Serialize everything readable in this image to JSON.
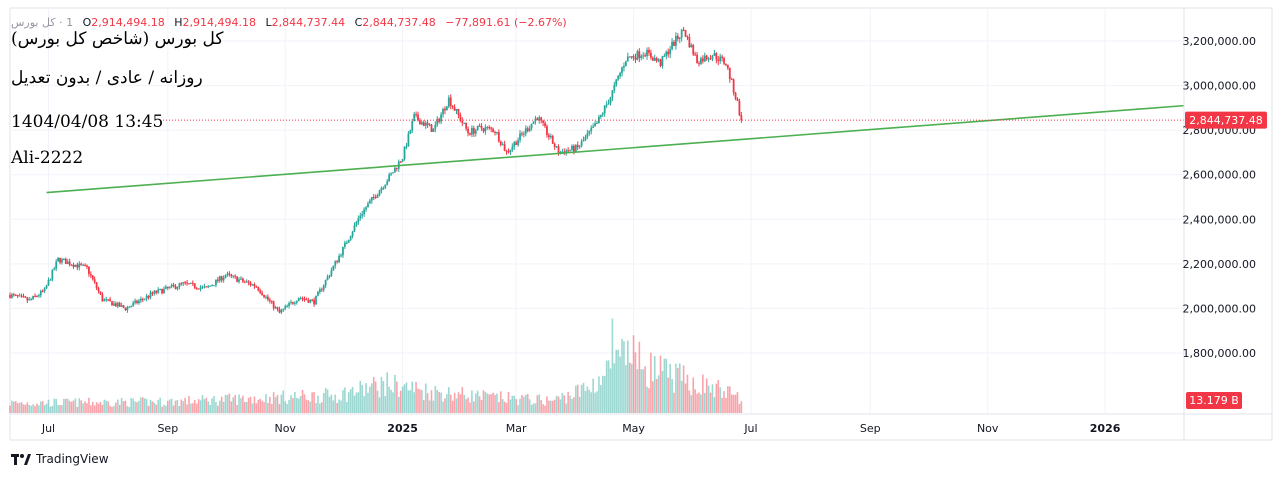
{
  "legend": {
    "symbol_name": "کل بورس",
    "timeframe": "1",
    "o_label": "O",
    "o_value": "2,914,494.18",
    "h_label": "H",
    "h_value": "2,914,494.18",
    "l_label": "L",
    "l_value": "2,844,737.44",
    "c_label": "C",
    "c_value": "2,844,737.48",
    "change": "−77,891.61 (−2.67%)"
  },
  "overlay": {
    "title": "کل بورس (شاخص کل بورس)",
    "subtitle": "روزانه / عادی / بدون تعدیل",
    "datetime": "1404/04/08 13:45",
    "author": "Ali-2222"
  },
  "brand": {
    "name": "TradingView"
  },
  "colors": {
    "up": "#26a69a",
    "down": "#f23645",
    "trendline": "#4caf50",
    "grid": "#f0f3fa",
    "text": "#131722"
  },
  "chart_data": {
    "type": "candlestick",
    "title": "کل بورس (شاخص کل بورس)",
    "interval": "daily",
    "ylim": [
      1600000,
      3300000
    ],
    "y_ticks": [
      1800000,
      2000000,
      2200000,
      2400000,
      2600000,
      2800000,
      3000000,
      3200000
    ],
    "y_tick_labels": [
      "1,800,000.00",
      "2,000,000.00",
      "2,200,000.00",
      "2,400,000.00",
      "2,600,000.00",
      "2,800,000.00",
      "3,000,000.00",
      "3,200,000.00"
    ],
    "x_ticks": [
      {
        "label": "Jul",
        "day": 0
      },
      {
        "label": "Sep",
        "day": 62
      },
      {
        "label": "Nov",
        "day": 123
      },
      {
        "label": "2025",
        "day": 184
      },
      {
        "label": "Mar",
        "day": 243
      },
      {
        "label": "May",
        "day": 304
      },
      {
        "label": "Jul",
        "day": 365
      },
      {
        "label": "Sep",
        "day": 427
      },
      {
        "label": "Nov",
        "day": 488
      },
      {
        "label": "2026",
        "day": 549
      }
    ],
    "x_range_days": [
      -20,
      590
    ],
    "last_price": 2844737.48,
    "last_price_label": "2,844,737.48",
    "volume_label": "13.179 B",
    "volume_ylim": [
      0,
      9
    ],
    "trendline": {
      "start": {
        "day": -1,
        "value": 2520000
      },
      "end": {
        "day": 590,
        "value": 2910000
      }
    },
    "close_path": [
      {
        "day": -20,
        "value": 2060000
      },
      {
        "day": -10,
        "value": 2035000
      },
      {
        "day": -2,
        "value": 2080000
      },
      {
        "day": 5,
        "value": 2220000
      },
      {
        "day": 20,
        "value": 2180000
      },
      {
        "day": 28,
        "value": 2040000
      },
      {
        "day": 40,
        "value": 2000000
      },
      {
        "day": 55,
        "value": 2070000
      },
      {
        "day": 70,
        "value": 2110000
      },
      {
        "day": 82,
        "value": 2090000
      },
      {
        "day": 92,
        "value": 2150000
      },
      {
        "day": 108,
        "value": 2100000
      },
      {
        "day": 120,
        "value": 1980000
      },
      {
        "day": 130,
        "value": 2050000
      },
      {
        "day": 138,
        "value": 2030000
      },
      {
        "day": 152,
        "value": 2250000
      },
      {
        "day": 162,
        "value": 2420000
      },
      {
        "day": 178,
        "value": 2600000
      },
      {
        "day": 184,
        "value": 2680000
      },
      {
        "day": 190,
        "value": 2860000
      },
      {
        "day": 200,
        "value": 2800000
      },
      {
        "day": 208,
        "value": 2940000
      },
      {
        "day": 218,
        "value": 2790000
      },
      {
        "day": 225,
        "value": 2810000
      },
      {
        "day": 232,
        "value": 2800000
      },
      {
        "day": 238,
        "value": 2700000
      },
      {
        "day": 246,
        "value": 2780000
      },
      {
        "day": 254,
        "value": 2860000
      },
      {
        "day": 265,
        "value": 2700000
      },
      {
        "day": 275,
        "value": 2720000
      },
      {
        "day": 285,
        "value": 2830000
      },
      {
        "day": 292,
        "value": 2950000
      },
      {
        "day": 300,
        "value": 3120000
      },
      {
        "day": 310,
        "value": 3150000
      },
      {
        "day": 318,
        "value": 3100000
      },
      {
        "day": 323,
        "value": 3170000
      },
      {
        "day": 330,
        "value": 3250000
      },
      {
        "day": 337,
        "value": 3110000
      },
      {
        "day": 345,
        "value": 3140000
      },
      {
        "day": 352,
        "value": 3100000
      },
      {
        "day": 358,
        "value": 2920000
      },
      {
        "day": 360,
        "value": 2844737
      }
    ],
    "volume_path": [
      {
        "day": -20,
        "value": 0.9
      },
      {
        "day": 60,
        "value": 1.0
      },
      {
        "day": 150,
        "value": 1.6
      },
      {
        "day": 175,
        "value": 2.6
      },
      {
        "day": 200,
        "value": 1.9
      },
      {
        "day": 230,
        "value": 1.4
      },
      {
        "day": 262,
        "value": 1.1
      },
      {
        "day": 280,
        "value": 2.2
      },
      {
        "day": 300,
        "value": 5.0
      },
      {
        "day": 315,
        "value": 3.8
      },
      {
        "day": 330,
        "value": 3.0
      },
      {
        "day": 350,
        "value": 2.0
      },
      {
        "day": 360,
        "value": 1.4
      }
    ],
    "volume_spikes": [
      {
        "day": 293,
        "value": 8.5
      },
      {
        "day": 304,
        "value": 7.0
      },
      {
        "day": 310,
        "value": 4.2
      }
    ]
  }
}
